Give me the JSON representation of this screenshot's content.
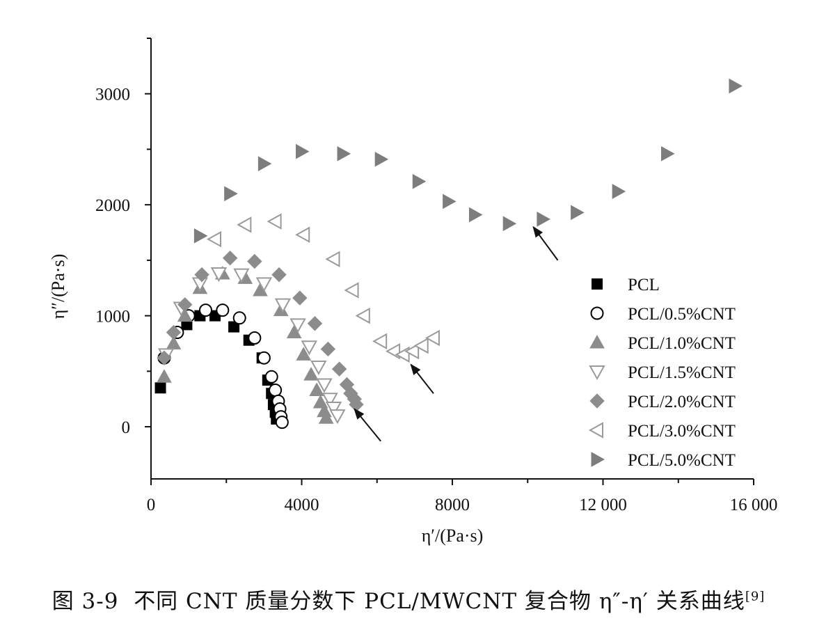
{
  "caption": {
    "number": "图 3-9",
    "text": "不同 CNT 质量分数下 PCL/MWCNT 复合物 η″-η′ 关系曲线",
    "ref": "[9]"
  },
  "colors": {
    "axis": "#111111",
    "PCL": "#000000",
    "PCL/0.5%CNT": "#000000",
    "PCL/1.0%CNT": "#8c8c8c",
    "PCL/1.5%CNT": "#9a9a9a",
    "PCL/2.0%CNT": "#8c8c8c",
    "PCL/3.0%CNT": "#9a9a9a",
    "PCL/5.0%CNT": "#7d7d7d"
  },
  "chart_data": {
    "type": "scatter",
    "title": "",
    "xlabel": "η′/(Pa·s)",
    "ylabel": "η″/(Pa·s)",
    "xlim": [
      0,
      16000
    ],
    "ylim": [
      -470,
      3500
    ],
    "xticks": [
      0,
      4000,
      8000,
      12000,
      16000
    ],
    "xtick_labels": [
      "0",
      "4000",
      "8000",
      "12 000",
      "16 000"
    ],
    "yticks": [
      0,
      1000,
      2000,
      3000
    ],
    "ytick_labels": [
      "0",
      "1000",
      "2000",
      "3000"
    ],
    "grid": false,
    "legend_position": "right",
    "series": [
      {
        "name": "PCL",
        "marker": "square-filled",
        "points": [
          [
            250,
            350
          ],
          [
            950,
            920
          ],
          [
            1300,
            1000
          ],
          [
            1700,
            1000
          ],
          [
            2200,
            900
          ],
          [
            2600,
            780
          ],
          [
            2950,
            620
          ],
          [
            3100,
            420
          ],
          [
            3200,
            300
          ],
          [
            3250,
            200
          ],
          [
            3300,
            130
          ],
          [
            3330,
            70
          ]
        ]
      },
      {
        "name": "PCL/0.5%CNT",
        "marker": "circle-open",
        "points": [
          [
            350,
            620
          ],
          [
            700,
            850
          ],
          [
            1000,
            1000
          ],
          [
            1450,
            1050
          ],
          [
            1900,
            1050
          ],
          [
            2350,
            980
          ],
          [
            2750,
            800
          ],
          [
            3000,
            620
          ],
          [
            3200,
            450
          ],
          [
            3300,
            330
          ],
          [
            3380,
            230
          ],
          [
            3420,
            160
          ],
          [
            3450,
            90
          ],
          [
            3480,
            40
          ]
        ]
      },
      {
        "name": "PCL/1.0%CNT",
        "marker": "triangle-up-filled",
        "points": [
          [
            350,
            450
          ],
          [
            600,
            750
          ],
          [
            900,
            1000
          ],
          [
            1300,
            1250
          ],
          [
            1900,
            1380
          ],
          [
            2500,
            1340
          ],
          [
            2900,
            1230
          ],
          [
            3450,
            1050
          ],
          [
            3800,
            850
          ],
          [
            4050,
            650
          ],
          [
            4250,
            470
          ],
          [
            4400,
            330
          ],
          [
            4500,
            220
          ],
          [
            4600,
            140
          ],
          [
            4650,
            80
          ]
        ]
      },
      {
        "name": "PCL/1.5%CNT",
        "marker": "triangle-down-open",
        "points": [
          [
            400,
            650
          ],
          [
            800,
            1070
          ],
          [
            1300,
            1290
          ],
          [
            1800,
            1380
          ],
          [
            2400,
            1370
          ],
          [
            3000,
            1290
          ],
          [
            3500,
            1100
          ],
          [
            3900,
            920
          ],
          [
            4200,
            720
          ],
          [
            4450,
            540
          ],
          [
            4600,
            380
          ],
          [
            4750,
            250
          ],
          [
            4850,
            170
          ],
          [
            4950,
            100
          ]
        ]
      },
      {
        "name": "PCL/2.0%CNT",
        "marker": "diamond-filled",
        "points": [
          [
            350,
            620
          ],
          [
            600,
            850
          ],
          [
            900,
            1100
          ],
          [
            1350,
            1370
          ],
          [
            2100,
            1520
          ],
          [
            2750,
            1490
          ],
          [
            3400,
            1370
          ],
          [
            3950,
            1160
          ],
          [
            4350,
            930
          ],
          [
            4700,
            700
          ],
          [
            5000,
            520
          ],
          [
            5200,
            380
          ],
          [
            5300,
            300
          ],
          [
            5400,
            250
          ],
          [
            5450,
            200
          ]
        ]
      },
      {
        "name": "PCL/3.0%CNT",
        "marker": "triangle-left-open",
        "points": [
          [
            1700,
            1690
          ],
          [
            2500,
            1820
          ],
          [
            3300,
            1850
          ],
          [
            4050,
            1730
          ],
          [
            4850,
            1510
          ],
          [
            5350,
            1230
          ],
          [
            5650,
            1000
          ],
          [
            6100,
            770
          ],
          [
            6450,
            680
          ],
          [
            6700,
            650
          ],
          [
            6950,
            680
          ],
          [
            7200,
            730
          ],
          [
            7500,
            800
          ]
        ]
      },
      {
        "name": "PCL/5.0%CNT",
        "marker": "triangle-right-filled",
        "points": [
          [
            1300,
            1720
          ],
          [
            2100,
            2100
          ],
          [
            3000,
            2370
          ],
          [
            4000,
            2480
          ],
          [
            5100,
            2460
          ],
          [
            6100,
            2410
          ],
          [
            7100,
            2210
          ],
          [
            7900,
            2030
          ],
          [
            8600,
            1910
          ],
          [
            9500,
            1830
          ],
          [
            10400,
            1870
          ],
          [
            11300,
            1930
          ],
          [
            12400,
            2120
          ],
          [
            13700,
            2460
          ],
          [
            15500,
            3070
          ]
        ]
      }
    ],
    "annotations": [
      {
        "type": "arrow",
        "from": [
          10800,
          1500
        ],
        "to": [
          10150,
          1800
        ]
      },
      {
        "type": "arrow",
        "from": [
          7500,
          300
        ],
        "to": [
          6900,
          560
        ]
      },
      {
        "type": "arrow",
        "from": [
          6100,
          -130
        ],
        "to": [
          5400,
          160
        ]
      }
    ]
  }
}
